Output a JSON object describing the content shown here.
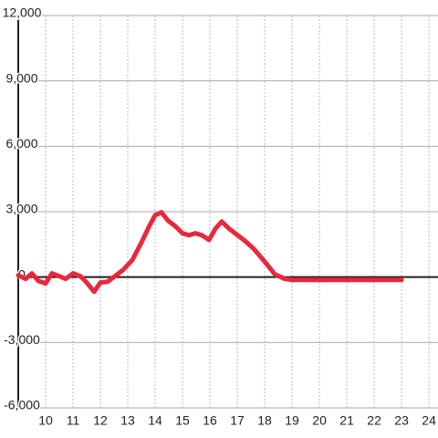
{
  "chart_data": {
    "type": "line",
    "x": [
      9.0,
      9.27,
      9.5,
      9.73,
      10.0,
      10.23,
      10.5,
      10.73,
      11.0,
      11.27,
      11.5,
      11.77,
      12.0,
      12.27,
      12.57,
      12.83,
      13.17,
      13.5,
      13.77,
      14.0,
      14.23,
      14.47,
      14.73,
      15.0,
      15.23,
      15.47,
      15.7,
      15.97,
      16.2,
      16.43,
      16.7,
      16.97,
      17.27,
      17.6,
      18.0,
      18.37,
      18.73,
      19.0,
      23.0
    ],
    "series": [
      {
        "color": "#e8283c",
        "values": [
          80,
          -80,
          170,
          -170,
          -290,
          170,
          40,
          -80,
          170,
          40,
          -250,
          -670,
          -250,
          -210,
          80,
          330,
          790,
          1590,
          2300,
          2840,
          2970,
          2590,
          2340,
          2010,
          1920,
          2010,
          1920,
          1710,
          2220,
          2550,
          2220,
          1960,
          1670,
          1300,
          710,
          130,
          -80,
          -130,
          -130
        ]
      }
    ],
    "xlim": [
      9,
      24.33
    ],
    "xticks": [
      10,
      11,
      12,
      13,
      14,
      15,
      16,
      17,
      18,
      19,
      20,
      21,
      22,
      23,
      24
    ],
    "ylim": [
      -6000,
      12000
    ],
    "yticks": [
      {
        "value": -6000,
        "label": "-6,000"
      },
      {
        "value": -3000,
        "label": "-3,000"
      },
      0,
      {
        "value": 3000,
        "label": "3,000"
      },
      {
        "value": 6000,
        "label": "6,000"
      },
      {
        "value": 9000,
        "label": "9,000"
      },
      {
        "value": 12000,
        "label": "12,000"
      }
    ],
    "grid": true
  }
}
